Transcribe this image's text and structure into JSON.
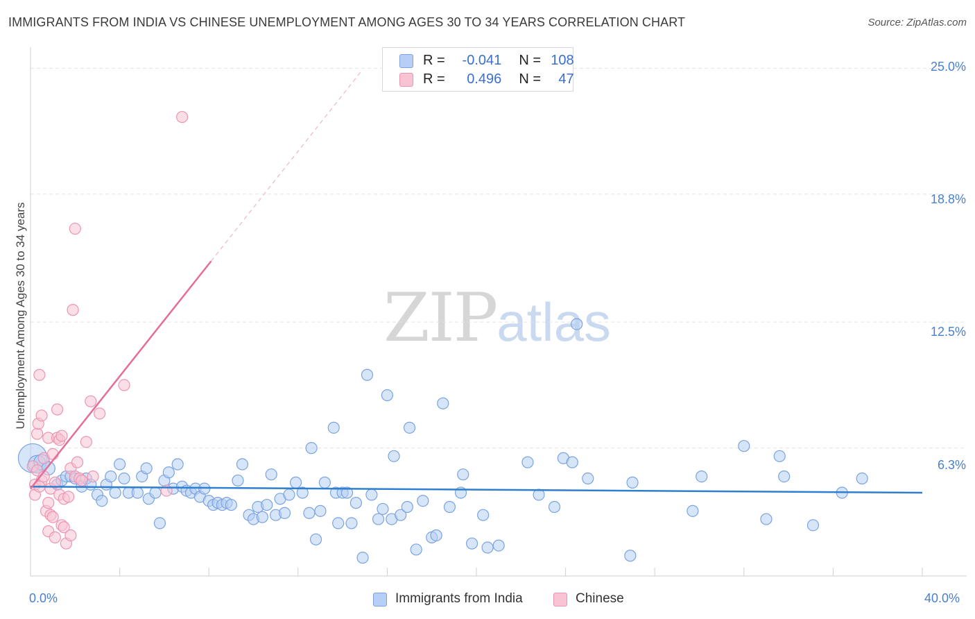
{
  "title": "IMMIGRANTS FROM INDIA VS CHINESE UNEMPLOYMENT AMONG AGES 30 TO 34 YEARS CORRELATION CHART",
  "source": "Source: ZipAtlas.com",
  "watermark": {
    "zip": "ZIP",
    "atlas": "atlas"
  },
  "legend": {
    "r_label": "R =",
    "n_label": "N =",
    "series": [
      {
        "name": "Immigrants from India",
        "r": "-0.041",
        "n": "108"
      },
      {
        "name": "Chinese",
        "r": "0.496",
        "n": "47"
      }
    ]
  },
  "colors": {
    "blue_fill": "#b7cff4",
    "blue_stroke": "#7aa3e0",
    "blue_line": "#2f7fd0",
    "pink_fill": "#f8c4d4",
    "pink_stroke": "#ec95b2",
    "pink_line": "#e46e97",
    "grid": "#e3e3e3",
    "tick_text": "#4a7fd0"
  },
  "chart_data": {
    "type": "scatter",
    "title": "IMMIGRANTS FROM INDIA VS CHINESE UNEMPLOYMENT AMONG AGES 30 TO 34 YEARS CORRELATION CHART",
    "xlabel": "",
    "ylabel": "Unemployment Among Ages 30 to 34 years",
    "xlim": [
      0,
      40
    ],
    "ylim": [
      0,
      25.9
    ],
    "x_tick_labels": [
      "0.0%",
      "40.0%"
    ],
    "y_ticks": [
      6.3,
      12.5,
      18.8,
      25.0
    ],
    "y_tick_labels": [
      "6.3%",
      "12.5%",
      "18.8%",
      "25.0%"
    ],
    "series": [
      {
        "name": "Immigrants from India",
        "trend": {
          "x0": 0,
          "y0": 4.4,
          "x1": 40,
          "y1": 4.1
        },
        "points": [
          [
            0.1,
            5.8,
            2.6
          ],
          [
            0.3,
            5.5,
            1.6
          ],
          [
            0.5,
            5.6,
            1.4
          ],
          [
            0.8,
            5.3,
            1.2
          ],
          [
            1.2,
            4.5,
            1
          ],
          [
            1.4,
            4.7,
            1
          ],
          [
            1.6,
            4.9,
            1
          ],
          [
            1.8,
            4.9,
            1
          ],
          [
            2.0,
            4.8,
            1
          ],
          [
            2.3,
            4.4,
            1
          ],
          [
            2.5,
            4.8,
            1
          ],
          [
            2.7,
            4.5,
            1
          ],
          [
            3.0,
            4.0,
            1
          ],
          [
            3.2,
            3.7,
            1
          ],
          [
            3.4,
            4.5,
            1
          ],
          [
            3.6,
            4.9,
            1
          ],
          [
            3.8,
            4.1,
            1
          ],
          [
            4.0,
            5.5,
            1
          ],
          [
            4.2,
            4.8,
            1
          ],
          [
            4.4,
            4.1,
            1
          ],
          [
            4.8,
            4.1,
            1
          ],
          [
            5.0,
            4.9,
            1
          ],
          [
            5.2,
            5.3,
            1
          ],
          [
            5.3,
            3.8,
            1
          ],
          [
            5.6,
            4.1,
            1
          ],
          [
            5.8,
            2.6,
            1
          ],
          [
            6.0,
            4.7,
            1
          ],
          [
            6.2,
            5.1,
            1
          ],
          [
            6.4,
            4.3,
            1
          ],
          [
            6.6,
            5.5,
            1
          ],
          [
            6.8,
            4.4,
            1
          ],
          [
            7.0,
            4.2,
            1
          ],
          [
            7.2,
            4.1,
            1
          ],
          [
            7.4,
            4.3,
            1
          ],
          [
            7.6,
            3.9,
            1
          ],
          [
            7.8,
            4.3,
            1
          ],
          [
            8.0,
            3.7,
            1
          ],
          [
            8.2,
            3.5,
            1
          ],
          [
            8.4,
            3.6,
            1
          ],
          [
            8.6,
            3.5,
            1
          ],
          [
            8.8,
            3.6,
            1
          ],
          [
            9.0,
            3.5,
            1
          ],
          [
            9.3,
            4.7,
            1
          ],
          [
            9.5,
            5.5,
            1
          ],
          [
            9.8,
            3.0,
            1
          ],
          [
            10.0,
            2.8,
            1
          ],
          [
            10.2,
            3.4,
            1
          ],
          [
            10.4,
            2.9,
            1
          ],
          [
            10.6,
            3.5,
            1
          ],
          [
            10.8,
            5.0,
            1
          ],
          [
            11.0,
            3.0,
            1
          ],
          [
            11.2,
            3.8,
            1
          ],
          [
            11.4,
            3.1,
            1
          ],
          [
            11.6,
            4.0,
            1
          ],
          [
            11.9,
            4.6,
            1
          ],
          [
            12.2,
            4.1,
            1
          ],
          [
            12.5,
            3.1,
            1
          ],
          [
            12.6,
            6.3,
            1
          ],
          [
            12.8,
            1.8,
            1
          ],
          [
            13.0,
            3.2,
            1
          ],
          [
            13.2,
            4.6,
            1
          ],
          [
            13.6,
            7.3,
            1
          ],
          [
            13.7,
            4.1,
            1
          ],
          [
            13.8,
            2.6,
            1
          ],
          [
            14.0,
            4.1,
            1
          ],
          [
            14.2,
            4.1,
            1
          ],
          [
            14.4,
            2.6,
            1
          ],
          [
            14.6,
            3.6,
            1
          ],
          [
            14.9,
            0.9,
            1
          ],
          [
            15.1,
            9.9,
            1
          ],
          [
            15.3,
            4.0,
            1
          ],
          [
            15.6,
            2.8,
            1
          ],
          [
            15.8,
            3.3,
            1
          ],
          [
            16.0,
            8.9,
            1
          ],
          [
            16.2,
            2.8,
            1
          ],
          [
            16.3,
            5.9,
            1
          ],
          [
            16.6,
            3.0,
            1
          ],
          [
            16.9,
            3.4,
            1
          ],
          [
            17.0,
            7.3,
            1
          ],
          [
            17.3,
            1.3,
            1
          ],
          [
            17.6,
            3.7,
            1
          ],
          [
            18.0,
            1.9,
            1
          ],
          [
            18.2,
            2.0,
            1
          ],
          [
            18.5,
            8.5,
            1
          ],
          [
            18.8,
            3.4,
            1
          ],
          [
            19.3,
            4.1,
            1
          ],
          [
            19.4,
            5.0,
            1
          ],
          [
            19.8,
            1.6,
            1
          ],
          [
            20.3,
            3.0,
            1
          ],
          [
            20.5,
            1.4,
            1
          ],
          [
            21.0,
            1.5,
            1
          ],
          [
            22.3,
            5.6,
            1
          ],
          [
            22.8,
            4.0,
            1
          ],
          [
            23.5,
            3.4,
            1
          ],
          [
            23.9,
            5.8,
            1
          ],
          [
            24.3,
            5.6,
            1
          ],
          [
            24.5,
            12.4,
            1
          ],
          [
            25.0,
            4.8,
            1
          ],
          [
            26.9,
            1.0,
            1
          ],
          [
            27.0,
            4.6,
            1
          ],
          [
            29.7,
            3.2,
            1
          ],
          [
            30.1,
            4.9,
            1
          ],
          [
            32.0,
            6.4,
            1
          ],
          [
            33.0,
            2.8,
            1
          ],
          [
            33.6,
            5.9,
            1
          ],
          [
            33.8,
            4.9,
            1
          ],
          [
            35.1,
            2.5,
            1
          ],
          [
            36.4,
            4.1,
            1
          ],
          [
            37.3,
            4.8,
            1
          ]
        ]
      },
      {
        "name": "Chinese",
        "trend": {
          "x0": 0,
          "y0": 4.3,
          "x1": 8.1,
          "y1": 15.5
        },
        "trend_extension": {
          "x0": 8.1,
          "y0": 15.5,
          "x1": 14.8,
          "y1": 24.8
        },
        "points": [
          [
            0.1,
            5.4,
            1
          ],
          [
            0.2,
            4.5,
            1
          ],
          [
            0.2,
            4.0,
            1
          ],
          [
            0.3,
            5.2,
            1
          ],
          [
            0.3,
            7.0,
            1
          ],
          [
            0.35,
            7.5,
            1
          ],
          [
            0.4,
            9.9,
            1
          ],
          [
            0.5,
            7.9,
            1
          ],
          [
            0.5,
            4.7,
            1
          ],
          [
            0.6,
            5.8,
            1
          ],
          [
            0.7,
            3.2,
            1
          ],
          [
            0.8,
            2.2,
            1
          ],
          [
            0.8,
            6.8,
            1
          ],
          [
            0.8,
            3.6,
            1
          ],
          [
            0.9,
            4.3,
            1
          ],
          [
            0.9,
            3.0,
            1
          ],
          [
            1.0,
            6.0,
            1
          ],
          [
            1.0,
            2.9,
            1
          ],
          [
            1.1,
            1.9,
            1
          ],
          [
            1.1,
            4.6,
            1
          ],
          [
            1.2,
            6.8,
            1
          ],
          [
            1.2,
            8.2,
            1
          ],
          [
            1.3,
            6.7,
            1
          ],
          [
            1.3,
            4.0,
            1
          ],
          [
            1.4,
            6.9,
            1
          ],
          [
            1.4,
            2.5,
            1
          ],
          [
            1.5,
            2.4,
            1
          ],
          [
            1.5,
            3.8,
            1
          ],
          [
            1.6,
            1.6,
            1
          ],
          [
            1.7,
            3.9,
            1
          ],
          [
            1.8,
            2.0,
            1
          ],
          [
            1.8,
            5.3,
            1
          ],
          [
            1.9,
            13.1,
            1
          ],
          [
            2.0,
            4.9,
            1
          ],
          [
            2.0,
            17.1,
            1
          ],
          [
            2.1,
            5.6,
            1
          ],
          [
            2.2,
            4.8,
            1
          ],
          [
            2.3,
            4.7,
            1
          ],
          [
            2.5,
            6.6,
            1
          ],
          [
            2.7,
            8.6,
            1
          ],
          [
            2.8,
            4.9,
            1
          ],
          [
            3.1,
            8.0,
            1
          ],
          [
            4.2,
            9.4,
            1
          ],
          [
            6.1,
            4.2,
            1
          ],
          [
            6.8,
            22.6,
            1
          ],
          [
            0.6,
            4.9,
            1
          ],
          [
            0.4,
            4.4,
            1
          ]
        ]
      }
    ]
  }
}
